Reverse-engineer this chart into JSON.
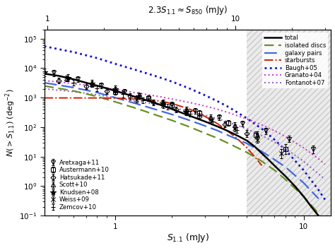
{
  "xlim": [
    0.42,
    14
  ],
  "ylim": [
    0.1,
    200000.0
  ],
  "shaded_x_start": 5.0,
  "total_x": [
    0.42,
    0.5,
    0.6,
    0.7,
    0.85,
    1.0,
    1.2,
    1.5,
    1.8,
    2.0,
    2.5,
    3.0,
    3.5,
    4.0,
    4.5,
    5.0,
    5.5,
    6.0,
    6.5,
    7.0,
    8.0,
    9.0,
    10.0,
    11.0,
    12.0,
    13.0
  ],
  "total_y": [
    6500,
    5500,
    4200,
    3200,
    2300,
    1700,
    1200,
    780,
    530,
    410,
    240,
    155,
    105,
    72,
    50,
    35,
    22,
    13,
    8,
    5,
    2.2,
    1.0,
    0.45,
    0.2,
    0.1,
    0.05
  ],
  "isolated_x": [
    0.42,
    0.6,
    0.8,
    1.0,
    1.3,
    1.7,
    2.0,
    2.5,
    3.0,
    3.5,
    4.0,
    5.0,
    6.0,
    7.0,
    8.0,
    10.0,
    12.0
  ],
  "isolated_y": [
    2500,
    1700,
    1100,
    720,
    430,
    240,
    170,
    100,
    62,
    42,
    28,
    14,
    7,
    3.5,
    1.7,
    0.45,
    0.12
  ],
  "pairs_x": [
    0.42,
    0.6,
    0.8,
    1.0,
    1.3,
    1.7,
    2.0,
    2.5,
    3.0,
    3.5,
    4.0,
    5.0,
    6.0,
    7.0,
    8.0,
    10.0,
    12.0
  ],
  "pairs_y": [
    3200,
    2200,
    1500,
    1000,
    620,
    370,
    270,
    168,
    110,
    76,
    52,
    28,
    15,
    8,
    4.5,
    1.3,
    0.38
  ],
  "starbursts_x": [
    0.42,
    0.6,
    0.8,
    1.0,
    1.3,
    1.7,
    2.0,
    2.5,
    3.0,
    3.5,
    4.0,
    4.5,
    5.0,
    5.5,
    6.0
  ],
  "starbursts_y": [
    980,
    980,
    975,
    960,
    900,
    780,
    640,
    400,
    230,
    130,
    70,
    38,
    20,
    10,
    5
  ],
  "baugh_x": [
    0.42,
    0.6,
    0.8,
    1.0,
    1.3,
    1.7,
    2.0,
    2.5,
    3.0,
    3.5,
    4.0,
    5.0,
    6.0,
    7.0,
    8.0,
    10.0,
    12.0,
    13.0
  ],
  "baugh_y": [
    55000,
    35000,
    22000,
    14000,
    8500,
    5000,
    3500,
    2000,
    1200,
    750,
    480,
    200,
    88,
    38,
    17,
    3.5,
    0.75,
    0.35
  ],
  "granato_x": [
    0.42,
    0.6,
    0.8,
    1.0,
    1.3,
    1.7,
    2.0,
    2.5,
    3.0,
    3.5,
    4.0,
    5.0,
    6.0,
    7.0,
    8.0,
    10.0,
    12.0,
    13.0
  ],
  "granato_y": [
    3800,
    3000,
    2400,
    1900,
    1450,
    1100,
    900,
    680,
    520,
    400,
    310,
    190,
    120,
    76,
    48,
    20,
    8.5,
    5.5
  ],
  "fontanot_x": [
    0.42,
    0.6,
    0.8,
    1.0,
    1.3,
    1.7,
    2.0,
    2.5,
    3.0,
    3.5,
    4.0,
    5.0,
    6.0,
    7.0,
    8.0,
    10.0,
    12.0,
    13.0
  ],
  "fontanot_y": [
    2000,
    1600,
    1250,
    1000,
    760,
    570,
    460,
    340,
    255,
    193,
    148,
    87,
    52,
    31,
    19,
    7,
    2.6,
    1.7
  ],
  "data_sets": [
    {
      "label": "Aretxaga+11",
      "marker": "v",
      "mfc": "none",
      "ms": 4,
      "x": [
        0.47,
        0.63,
        0.84,
        1.12,
        1.5,
        2.0,
        2.66,
        3.55,
        4.73,
        6.3,
        8.41,
        11.2
      ],
      "y": [
        6800,
        4200,
        2600,
        1600,
        950,
        580,
        360,
        220,
        130,
        75,
        40,
        18
      ],
      "yerr_lo": [
        1500,
        800,
        500,
        300,
        180,
        110,
        70,
        45,
        27,
        16,
        9,
        5
      ],
      "yerr_hi": [
        2000,
        1100,
        700,
        400,
        240,
        140,
        90,
        55,
        33,
        20,
        11,
        6
      ]
    },
    {
      "label": "Austermann+10",
      "marker": "s",
      "mfc": "none",
      "ms": 4,
      "x": [
        1.0,
        1.5,
        2.0,
        2.8,
        4.0,
        5.6,
        8.0
      ],
      "y": [
        1550,
        950,
        560,
        300,
        140,
        55,
        18
      ],
      "yerr_lo": [
        300,
        180,
        110,
        60,
        30,
        13,
        6
      ],
      "yerr_hi": [
        380,
        230,
        140,
        75,
        38,
        17,
        8
      ]
    },
    {
      "label": "Hatsukade+11",
      "marker": "D",
      "mfc": "none",
      "ms": 3.5,
      "x": [
        0.5,
        0.7,
        0.9,
        1.2,
        1.6,
        2.1,
        2.8,
        3.8,
        5.0
      ],
      "y": [
        3800,
        2500,
        1700,
        1100,
        680,
        400,
        230,
        125,
        60
      ],
      "yerr_lo": [
        800,
        500,
        350,
        220,
        135,
        80,
        48,
        27,
        14
      ],
      "yerr_hi": [
        1000,
        650,
        450,
        280,
        170,
        100,
        60,
        34,
        18
      ]
    },
    {
      "label": "Scott+10",
      "marker": "^",
      "mfc": "none",
      "ms": 4,
      "x": [
        0.55,
        0.75,
        1.0,
        1.35,
        1.8,
        2.4,
        3.2,
        4.3,
        5.7
      ],
      "y": [
        4500,
        2900,
        1850,
        1150,
        700,
        400,
        220,
        115,
        55
      ],
      "yerr_lo": [
        900,
        580,
        370,
        230,
        140,
        80,
        45,
        24,
        13
      ],
      "yerr_hi": [
        1100,
        720,
        460,
        290,
        175,
        100,
        56,
        30,
        16
      ]
    },
    {
      "label": "Knudsen+08",
      "marker": "*",
      "mfc": "black",
      "ms": 6,
      "x": [
        0.42,
        0.56,
        0.75,
        1.0,
        1.33,
        1.78,
        2.37
      ],
      "y": [
        7200,
        4800,
        3100,
        1950,
        1150,
        640,
        330
      ],
      "yerr_lo": [
        2000,
        1200,
        750,
        450,
        260,
        140,
        75
      ],
      "yerr_hi": [
        2500,
        1600,
        1000,
        600,
        350,
        190,
        100
      ]
    },
    {
      "label": "Weiss+09",
      "marker": "x",
      "mfc": "none",
      "ms": 5,
      "x": [
        1.3,
        1.8,
        2.4,
        3.2,
        4.3,
        5.7,
        7.6
      ],
      "y": [
        880,
        560,
        330,
        180,
        90,
        38,
        13
      ],
      "yerr_lo": [
        180,
        115,
        68,
        37,
        19,
        9,
        4
      ],
      "yerr_hi": [
        220,
        140,
        85,
        46,
        24,
        11,
        5
      ]
    },
    {
      "label": "Zemcov+10",
      "marker": "+",
      "mfc": "none",
      "ms": 5,
      "x": [
        0.6,
        0.8,
        1.1,
        1.4,
        1.9,
        2.5,
        3.3,
        4.4
      ],
      "y": [
        3200,
        2100,
        1300,
        820,
        490,
        280,
        155,
        80
      ],
      "yerr_lo": [
        640,
        420,
        260,
        165,
        100,
        57,
        32,
        17
      ],
      "yerr_hi": [
        800,
        525,
        325,
        205,
        124,
        71,
        40,
        21
      ]
    }
  ],
  "line_colors": {
    "total": "#000000",
    "isolated_discs": "#6b8e23",
    "galaxy_pairs": "#4169e1",
    "starbursts": "#cc2200",
    "baugh": "#1414cc",
    "granato": "#cc44cc",
    "fontanot": "#9966cc"
  }
}
